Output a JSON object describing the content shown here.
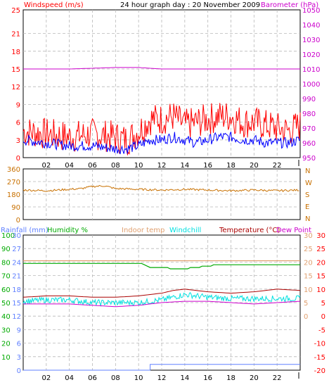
{
  "panel1": {
    "title": "24 hour graph day : 20 November 2009",
    "left_label": "Windspeed (m/s)",
    "right_label": "Barometer (hPa)",
    "left_ticks": [
      "0",
      "3",
      "6",
      "9",
      "12",
      "15",
      "18",
      "21",
      "25"
    ],
    "right_ticks": [
      "950",
      "960",
      "970",
      "980",
      "990",
      "1000",
      "1010",
      "1020",
      "1030",
      "1040",
      "1050"
    ]
  },
  "panel2": {
    "left_ticks": [
      "0",
      "90",
      "180",
      "270",
      "360"
    ],
    "right_letters": [
      "N",
      "W",
      "S",
      "E",
      "N"
    ]
  },
  "panel3": {
    "labels": {
      "rainfall": "Rainfall (mm)",
      "humidity": "Humidity %",
      "indoor": "Indoor temp",
      "windchill": "Windchill",
      "temperature": "Temperature (°C)",
      "dewpoint": "Dew Point"
    },
    "humidity_ticks": [
      "10",
      "20",
      "30",
      "40",
      "50",
      "60",
      "70",
      "80",
      "90",
      "100"
    ],
    "rain_ticks": [
      "0",
      "3",
      "6",
      "9",
      "12",
      "15",
      "18",
      "21",
      "24",
      "27",
      "30"
    ],
    "right_temp_ticks": [
      "-20",
      "-15",
      "-10",
      "-5",
      "0",
      "5",
      "10",
      "15",
      "20",
      "25",
      "30"
    ],
    "inner_temp_ticks": [
      "0",
      "5",
      "10",
      "15",
      "20",
      "25",
      "30"
    ]
  },
  "x_ticks": [
    "02",
    "04",
    "06",
    "08",
    "10",
    "12",
    "14",
    "16",
    "18",
    "20",
    "22"
  ],
  "colors": {
    "windspeed": "#ff0000",
    "windavg": "#0000ff",
    "barometer": "#cc00cc",
    "direction": "#c87000",
    "humidity": "#00aa00",
    "indoor": "#e0a070",
    "windchill": "#00e0e0",
    "temperature": "#aa0000",
    "dewpoint": "#cc00cc",
    "rainfall": "#6080ff"
  },
  "chart_data": [
    {
      "type": "line",
      "x_unit": "hour",
      "xlim": [
        0,
        24
      ],
      "series": [
        {
          "name": "Windspeed (m/s)",
          "axis": "left",
          "x": [
            0,
            2,
            4,
            6,
            8,
            9,
            10,
            11,
            12,
            13,
            14,
            15,
            16,
            17,
            18,
            19,
            20,
            21,
            22,
            23,
            24
          ],
          "values": [
            4.5,
            4,
            3.5,
            4,
            3.5,
            3,
            4.5,
            6.5,
            6.5,
            7,
            5.5,
            6,
            6.5,
            7,
            7,
            6,
            6,
            5.5,
            5,
            4.5,
            5.5
          ]
        },
        {
          "name": "Windspeed avg",
          "axis": "left",
          "x": [
            0,
            2,
            4,
            6,
            8,
            9,
            10,
            11,
            12,
            13,
            14,
            15,
            16,
            17,
            18,
            19,
            20,
            21,
            22,
            23,
            24
          ],
          "values": [
            3,
            2.5,
            2,
            2,
            1.5,
            1.5,
            2,
            3,
            3,
            3.5,
            3,
            2.5,
            3,
            3.5,
            3.5,
            3,
            3,
            2.5,
            2.5,
            2.5,
            3
          ]
        },
        {
          "name": "Barometer (hPa)",
          "axis": "right",
          "x": [
            0,
            4,
            8,
            10,
            12,
            16,
            20,
            24
          ],
          "values": [
            1010,
            1010,
            1011,
            1011,
            1010,
            1010,
            1010,
            1010
          ]
        }
      ],
      "ylim_left": [
        0,
        25
      ],
      "ylim_right": [
        950,
        1050
      ]
    },
    {
      "type": "line",
      "x_unit": "hour",
      "xlim": [
        0,
        24
      ],
      "series": [
        {
          "name": "Wind direction",
          "x": [
            0,
            2,
            4,
            5,
            6,
            7,
            8,
            10,
            12,
            14,
            16,
            18,
            20,
            22,
            24
          ],
          "values": [
            210,
            205,
            215,
            220,
            235,
            240,
            220,
            215,
            210,
            215,
            210,
            205,
            210,
            205,
            210
          ]
        }
      ],
      "ylim": [
        0,
        360
      ]
    },
    {
      "type": "line",
      "x_unit": "hour",
      "xlim": [
        0,
        24
      ],
      "series": [
        {
          "name": "Humidity %",
          "axis": "humidity",
          "x": [
            0,
            10,
            10.5,
            11,
            12,
            13,
            14,
            15,
            16,
            17,
            19,
            22,
            24
          ],
          "values": [
            79,
            79,
            78,
            76,
            76,
            75,
            75,
            76,
            77,
            78,
            78,
            78,
            78
          ]
        },
        {
          "name": "Indoor temp",
          "axis": "temp",
          "x": [
            0,
            24
          ],
          "values": [
            20.5,
            20.5
          ]
        },
        {
          "name": "Windchill",
          "axis": "temp",
          "x": [
            0,
            2,
            4,
            6,
            8,
            10,
            12,
            13,
            14,
            16,
            18,
            20,
            22,
            24
          ],
          "values": [
            5.5,
            6,
            6,
            5,
            5,
            5,
            6,
            7,
            8,
            7,
            6.5,
            6.5,
            6.5,
            6.5
          ]
        },
        {
          "name": "Temperature (°C)",
          "axis": "temp",
          "x": [
            0,
            2,
            4,
            6,
            8,
            10,
            12,
            13,
            14,
            16,
            18,
            20,
            22,
            24
          ],
          "values": [
            7,
            7.5,
            7.5,
            7,
            7,
            7.5,
            8.5,
            9.5,
            10,
            9,
            8.5,
            9,
            10,
            9.5
          ]
        },
        {
          "name": "Dew Point",
          "axis": "temp",
          "x": [
            0,
            2,
            4,
            6,
            8,
            10,
            12,
            14,
            16,
            18,
            20,
            22,
            24
          ],
          "values": [
            4.5,
            4.5,
            4.5,
            4,
            3.5,
            4,
            5,
            5.5,
            5.5,
            5,
            4.5,
            5,
            5.5
          ]
        },
        {
          "name": "Rainfall (mm)",
          "axis": "rain",
          "x": [
            0,
            11,
            11,
            24
          ],
          "values": [
            0,
            0,
            1.3,
            1.3
          ]
        }
      ],
      "ylim_humidity": [
        0,
        100
      ],
      "ylim_rain": [
        0,
        30
      ],
      "ylim_temp": [
        -20,
        30
      ]
    }
  ]
}
